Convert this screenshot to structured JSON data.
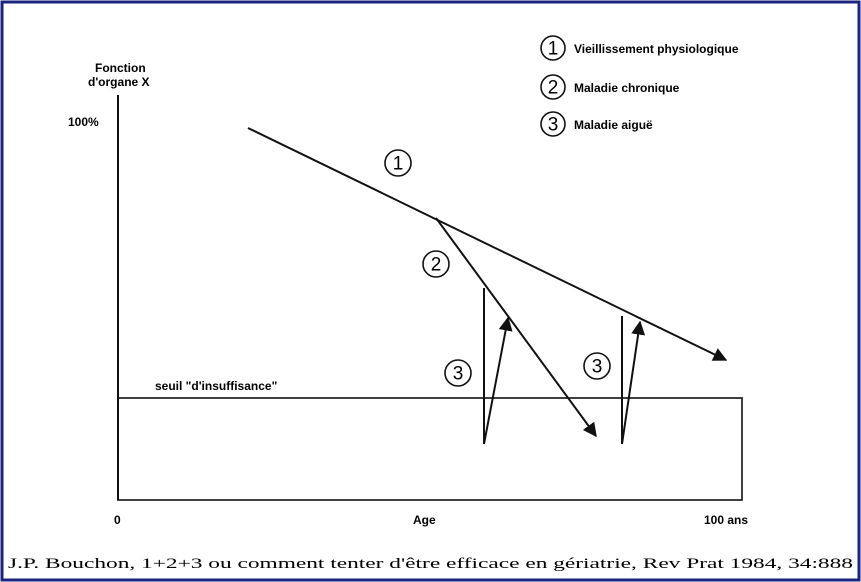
{
  "axis": {
    "y_label": [
      "Fonction",
      "d'organe X"
    ],
    "y_top": "100%",
    "x_origin": "0",
    "x_label": "Age",
    "x_end": "100 ans"
  },
  "legend": [
    {
      "number": "1",
      "label": "Vieillissement physiologique"
    },
    {
      "number": "2",
      "label": "Maladie chronique"
    },
    {
      "number": "3",
      "label": "Maladie aiguë"
    }
  ],
  "markers": [
    "1",
    "2",
    "3",
    "3"
  ],
  "threshold": "seuil \"d'insuffisance\"",
  "caption": "J.P. Bouchon, 1+2+3 ou comment tenter d'être efficace en gériatrie, Rev Prat 1984, 34:888"
}
